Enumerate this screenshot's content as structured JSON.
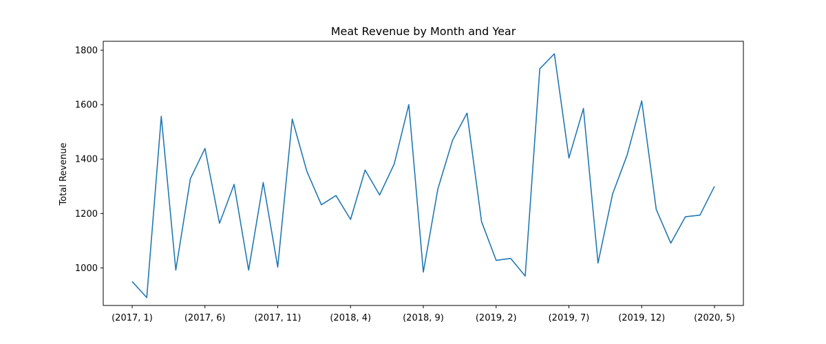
{
  "chart_data": {
    "type": "line",
    "title": "Meat Revenue by Month and Year",
    "xlabel": "",
    "ylabel": "Total Revenue",
    "x_tick_labels": [
      "(2017, 1)",
      "(2017, 6)",
      "(2017, 11)",
      "(2018, 4)",
      "(2018, 9)",
      "(2019, 2)",
      "(2019, 7)",
      "(2019, 12)",
      "(2020, 5)"
    ],
    "x_tick_indices": [
      0,
      5,
      10,
      15,
      20,
      25,
      30,
      35,
      40
    ],
    "y_ticks": [
      1000,
      1200,
      1400,
      1600,
      1800
    ],
    "ylim": [
      862,
      1833
    ],
    "grid": false,
    "series": [
      {
        "color": "#1f77b4",
        "categories": [
          "(2017, 1)",
          "(2017, 2)",
          "(2017, 3)",
          "(2017, 4)",
          "(2017, 5)",
          "(2017, 6)",
          "(2017, 7)",
          "(2017, 8)",
          "(2017, 9)",
          "(2017, 10)",
          "(2017, 11)",
          "(2017, 12)",
          "(2018, 1)",
          "(2018, 2)",
          "(2018, 3)",
          "(2018, 4)",
          "(2018, 5)",
          "(2018, 6)",
          "(2018, 7)",
          "(2018, 8)",
          "(2018, 9)",
          "(2018, 10)",
          "(2018, 11)",
          "(2018, 12)",
          "(2019, 1)",
          "(2019, 2)",
          "(2019, 3)",
          "(2019, 4)",
          "(2019, 5)",
          "(2019, 6)",
          "(2019, 7)",
          "(2019, 8)",
          "(2019, 9)",
          "(2019, 10)",
          "(2019, 11)",
          "(2019, 12)",
          "(2020, 1)",
          "(2020, 2)",
          "(2020, 3)",
          "(2020, 4)",
          "(2020, 5)"
        ],
        "values": [
          950,
          891,
          1557,
          992,
          1328,
          1439,
          1164,
          1307,
          992,
          1314,
          1003,
          1547,
          1355,
          1232,
          1266,
          1178,
          1360,
          1268,
          1382,
          1600,
          985,
          1290,
          1468,
          1569,
          1170,
          1028,
          1035,
          970,
          1732,
          1787,
          1404,
          1586,
          1018,
          1272,
          1415,
          1614,
          1215,
          1091,
          1188,
          1194,
          1300
        ]
      }
    ]
  }
}
